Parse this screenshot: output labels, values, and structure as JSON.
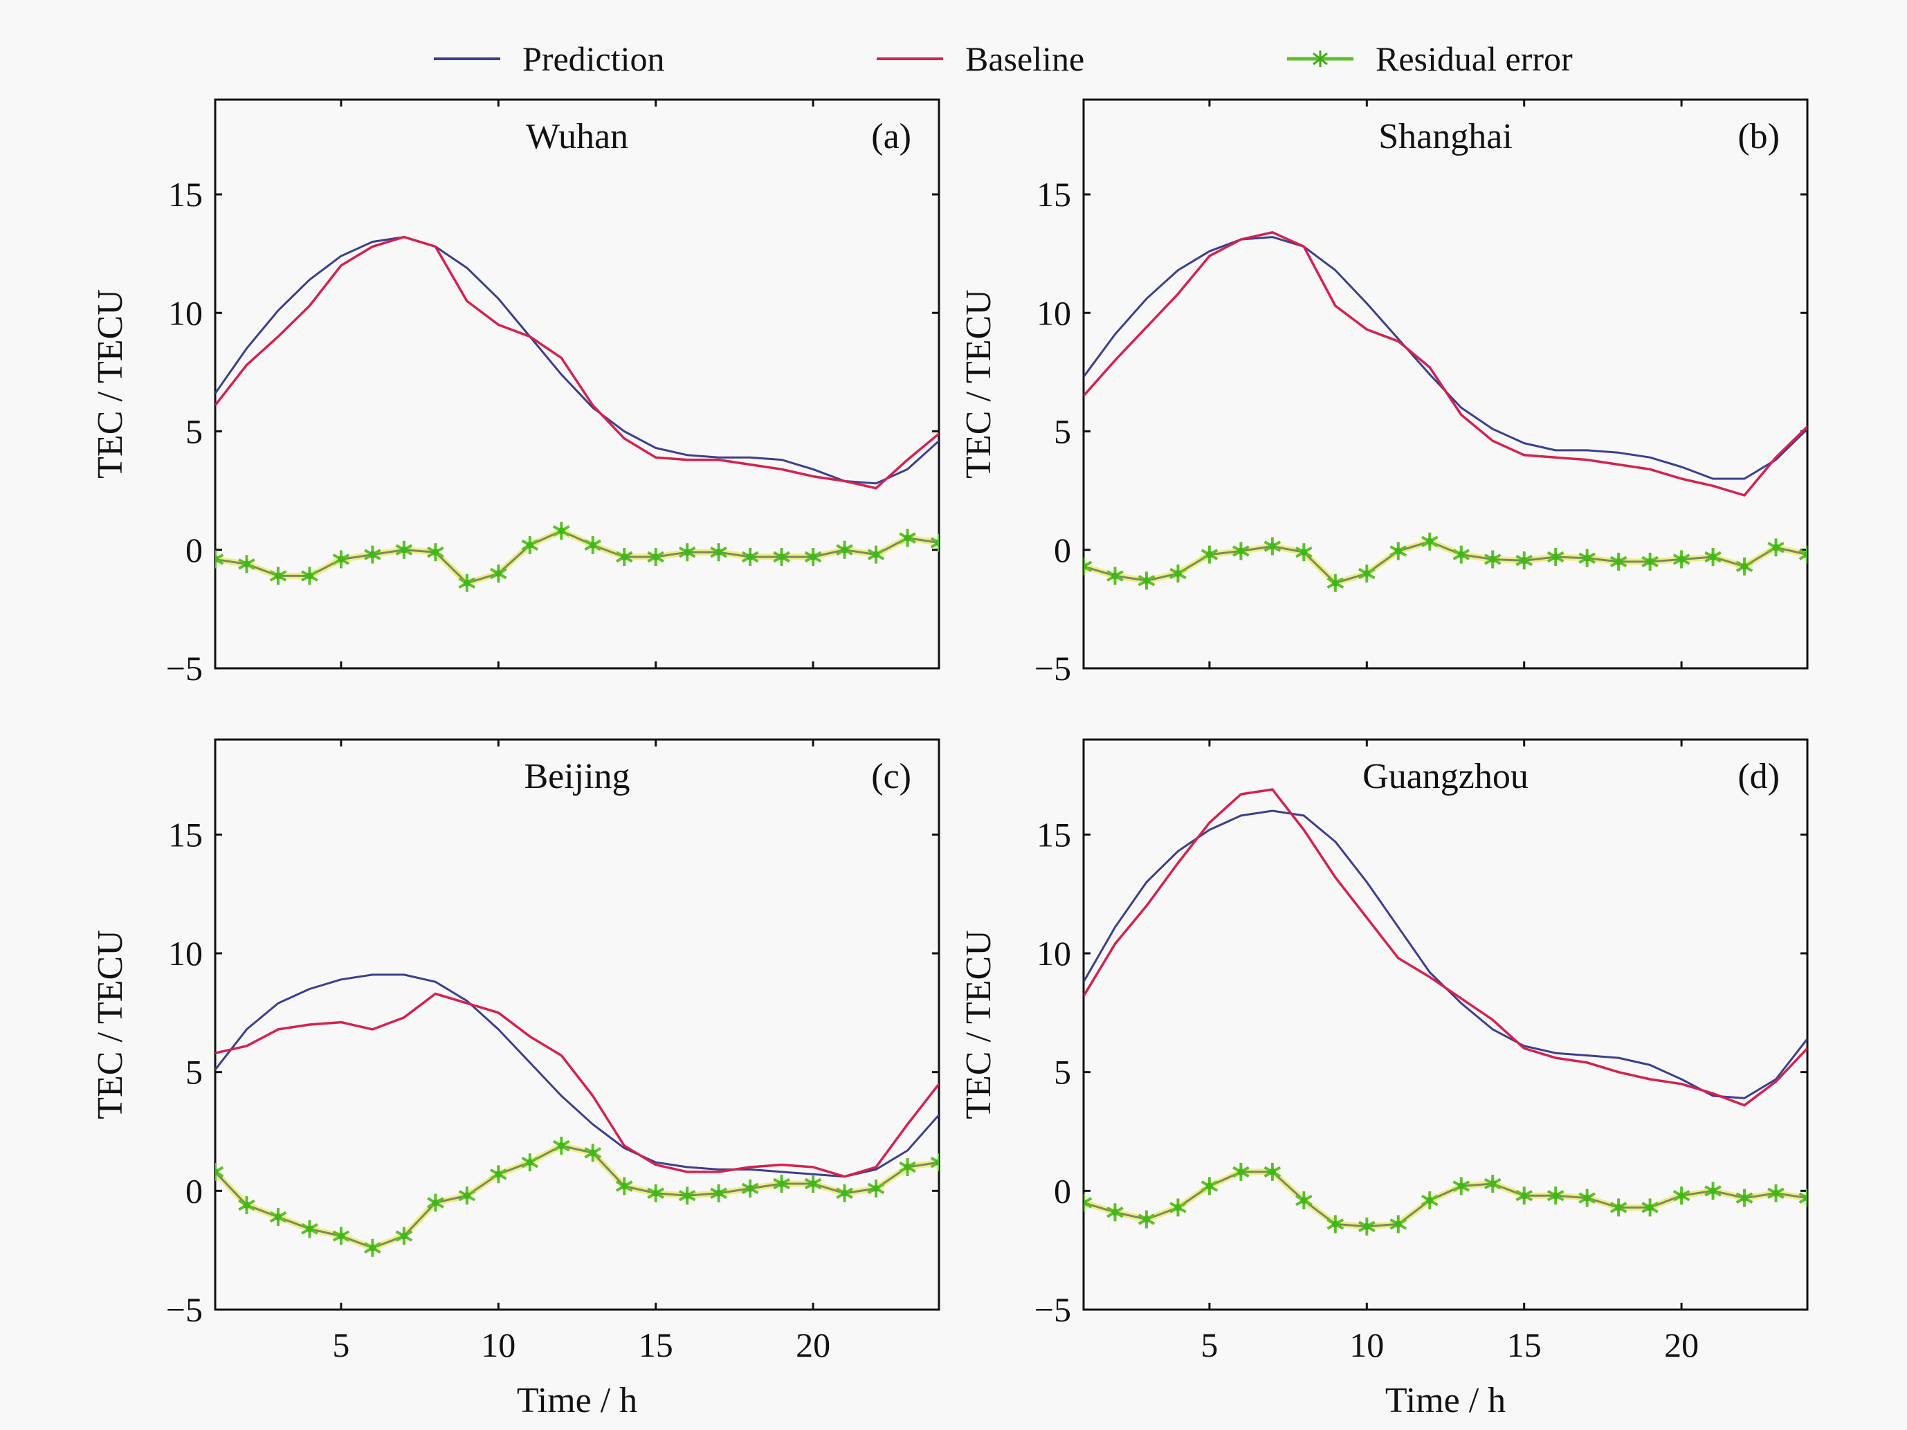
{
  "legend": {
    "items": [
      {
        "label": "Prediction",
        "color": "#3b3f8f",
        "marker": "none"
      },
      {
        "label": "Baseline",
        "color": "#d6204e",
        "marker": "none"
      },
      {
        "label": "Residual error",
        "color": "#5fbf2a",
        "marker": "asterisk"
      }
    ]
  },
  "chart_data": [
    {
      "type": "line",
      "panel_label": "(a)",
      "title": "Wuhan",
      "xlabel": "Time / h",
      "ylabel": "TEC / TECU",
      "xlim": [
        1,
        24
      ],
      "ylim": [
        -5,
        19
      ],
      "xticks": [
        5,
        10,
        15,
        20
      ],
      "yticks": [
        -5,
        0,
        5,
        10,
        15
      ],
      "show_xticklabels": false,
      "show_xlabel": false,
      "grid": false,
      "legend": "top (shared)",
      "x": [
        1,
        2,
        3,
        4,
        5,
        6,
        7,
        8,
        9,
        10,
        11,
        12,
        13,
        14,
        15,
        16,
        17,
        18,
        19,
        20,
        21,
        22,
        23,
        24
      ],
      "series": [
        {
          "name": "Prediction",
          "values": [
            6.6,
            8.5,
            10.1,
            11.4,
            12.4,
            13.0,
            13.2,
            12.8,
            11.9,
            10.6,
            9.0,
            7.4,
            6.0,
            5.0,
            4.3,
            4.0,
            3.9,
            3.9,
            3.8,
            3.4,
            2.9,
            2.8,
            3.4,
            4.6
          ]
        },
        {
          "name": "Baseline",
          "values": [
            6.1,
            7.8,
            9.0,
            10.3,
            12.0,
            12.8,
            13.2,
            12.8,
            10.5,
            9.5,
            9.0,
            8.1,
            6.1,
            4.7,
            3.9,
            3.8,
            3.8,
            3.6,
            3.4,
            3.1,
            2.9,
            2.6,
            3.8,
            4.9
          ]
        },
        {
          "name": "Residual error",
          "values": [
            -0.4,
            -0.6,
            -1.1,
            -1.1,
            -0.4,
            -0.2,
            0.0,
            -0.1,
            -1.4,
            -1.0,
            0.2,
            0.8,
            0.2,
            -0.3,
            -0.3,
            -0.1,
            -0.1,
            -0.3,
            -0.3,
            -0.3,
            0.0,
            -0.2,
            0.5,
            0.3
          ]
        }
      ]
    },
    {
      "type": "line",
      "panel_label": "(b)",
      "title": "Shanghai",
      "xlabel": "Time / h",
      "ylabel": "TEC / TECU",
      "xlim": [
        1,
        24
      ],
      "ylim": [
        -5,
        19
      ],
      "xticks": [
        5,
        10,
        15,
        20
      ],
      "yticks": [
        -5,
        0,
        5,
        10,
        15
      ],
      "show_xticklabels": false,
      "show_xlabel": false,
      "grid": false,
      "legend": "top (shared)",
      "x": [
        1,
        2,
        3,
        4,
        5,
        6,
        7,
        8,
        9,
        10,
        11,
        12,
        13,
        14,
        15,
        16,
        17,
        18,
        19,
        20,
        21,
        22,
        23,
        24
      ],
      "series": [
        {
          "name": "Prediction",
          "values": [
            7.3,
            9.1,
            10.6,
            11.8,
            12.6,
            13.1,
            13.2,
            12.8,
            11.8,
            10.4,
            8.9,
            7.4,
            6.0,
            5.1,
            4.5,
            4.2,
            4.2,
            4.1,
            3.9,
            3.5,
            3.0,
            3.0,
            3.8,
            5.1
          ]
        },
        {
          "name": "Baseline",
          "values": [
            6.5,
            8.0,
            9.4,
            10.8,
            12.4,
            13.1,
            13.4,
            12.8,
            10.3,
            9.3,
            8.8,
            7.7,
            5.7,
            4.6,
            4.0,
            3.9,
            3.8,
            3.6,
            3.4,
            3.0,
            2.7,
            2.3,
            3.9,
            5.2
          ]
        },
        {
          "name": "Residual error",
          "values": [
            -0.7,
            -1.1,
            -1.3,
            -1.0,
            -0.2,
            -0.05,
            0.15,
            -0.1,
            -1.4,
            -1.0,
            -0.05,
            0.35,
            -0.2,
            -0.4,
            -0.45,
            -0.3,
            -0.35,
            -0.5,
            -0.5,
            -0.4,
            -0.3,
            -0.7,
            0.1,
            -0.2
          ]
        }
      ]
    },
    {
      "type": "line",
      "panel_label": "(c)",
      "title": "Beijing",
      "xlabel": "Time / h",
      "ylabel": "TEC / TECU",
      "xlim": [
        1,
        24
      ],
      "ylim": [
        -5,
        19
      ],
      "xticks": [
        5,
        10,
        15,
        20
      ],
      "yticks": [
        -5,
        0,
        5,
        10,
        15
      ],
      "show_xticklabels": true,
      "show_xlabel": true,
      "grid": false,
      "legend": "top (shared)",
      "x": [
        1,
        2,
        3,
        4,
        5,
        6,
        7,
        8,
        9,
        10,
        11,
        12,
        13,
        14,
        15,
        16,
        17,
        18,
        19,
        20,
        21,
        22,
        23,
        24
      ],
      "series": [
        {
          "name": "Prediction",
          "values": [
            5.1,
            6.8,
            7.9,
            8.5,
            8.9,
            9.1,
            9.1,
            8.8,
            8.0,
            6.8,
            5.4,
            4.0,
            2.8,
            1.8,
            1.2,
            1.0,
            0.9,
            0.9,
            0.8,
            0.7,
            0.6,
            0.9,
            1.7,
            3.2
          ]
        },
        {
          "name": "Baseline",
          "values": [
            5.8,
            6.1,
            6.8,
            7.0,
            7.1,
            6.8,
            7.3,
            8.3,
            7.9,
            7.5,
            6.5,
            5.7,
            4.0,
            1.9,
            1.1,
            0.8,
            0.8,
            1.0,
            1.1,
            1.0,
            0.6,
            1.0,
            2.8,
            4.5
          ]
        },
        {
          "name": "Residual error",
          "values": [
            0.8,
            -0.6,
            -1.1,
            -1.6,
            -1.9,
            -2.4,
            -1.9,
            -0.5,
            -0.2,
            0.7,
            1.2,
            1.9,
            1.6,
            0.2,
            -0.1,
            -0.2,
            -0.1,
            0.1,
            0.3,
            0.3,
            -0.1,
            0.1,
            1.0,
            1.2
          ]
        }
      ]
    },
    {
      "type": "line",
      "panel_label": "(d)",
      "title": "Guangzhou",
      "xlabel": "Time / h",
      "ylabel": "TEC / TECU",
      "xlim": [
        1,
        24
      ],
      "ylim": [
        -5,
        19
      ],
      "xticks": [
        5,
        10,
        15,
        20
      ],
      "yticks": [
        -5,
        0,
        5,
        10,
        15
      ],
      "show_xticklabels": true,
      "show_xlabel": true,
      "grid": false,
      "legend": "top (shared)",
      "x": [
        1,
        2,
        3,
        4,
        5,
        6,
        7,
        8,
        9,
        10,
        11,
        12,
        13,
        14,
        15,
        16,
        17,
        18,
        19,
        20,
        21,
        22,
        23,
        24
      ],
      "series": [
        {
          "name": "Prediction",
          "values": [
            8.8,
            11.1,
            13.0,
            14.3,
            15.2,
            15.8,
            16.0,
            15.8,
            14.7,
            13.0,
            11.1,
            9.2,
            7.9,
            6.8,
            6.1,
            5.8,
            5.7,
            5.6,
            5.3,
            4.7,
            4.0,
            3.9,
            4.7,
            6.4
          ]
        },
        {
          "name": "Baseline",
          "values": [
            8.2,
            10.4,
            12.0,
            13.8,
            15.5,
            16.7,
            16.9,
            15.2,
            13.2,
            11.5,
            9.8,
            9.0,
            8.1,
            7.2,
            6.0,
            5.6,
            5.4,
            5.0,
            4.7,
            4.5,
            4.1,
            3.6,
            4.6,
            6.0
          ]
        },
        {
          "name": "Residual error",
          "values": [
            -0.5,
            -0.9,
            -1.2,
            -0.7,
            0.2,
            0.8,
            0.8,
            -0.4,
            -1.4,
            -1.5,
            -1.4,
            -0.4,
            0.2,
            0.3,
            -0.2,
            -0.2,
            -0.3,
            -0.7,
            -0.7,
            -0.2,
            0.0,
            -0.3,
            -0.1,
            -0.3
          ]
        }
      ]
    }
  ]
}
